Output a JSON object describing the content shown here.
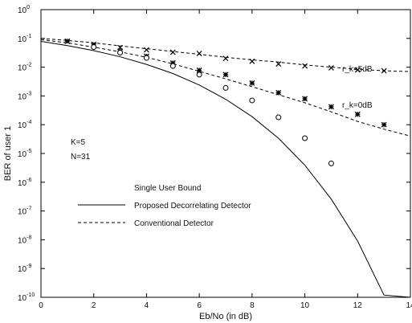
{
  "chart_data": {
    "type": "line",
    "title": "",
    "xlabel": "Eb/No (in dB)",
    "ylabel": "BER of user 1",
    "xlim": [
      0,
      14
    ],
    "ylim": [
      1e-10,
      1
    ],
    "yscale": "log",
    "grid": false,
    "x_ticks": [
      0,
      2,
      4,
      6,
      8,
      10,
      12,
      14
    ],
    "y_ticks": [
      {
        "value": 1,
        "base": "10",
        "exp": "0"
      },
      {
        "value": 0.1,
        "base": "10",
        "exp": "-1"
      },
      {
        "value": 0.01,
        "base": "10",
        "exp": "-2"
      },
      {
        "value": 0.001,
        "base": "10",
        "exp": "-3"
      },
      {
        "value": 0.0001,
        "base": "10",
        "exp": "-4"
      },
      {
        "value": 1e-05,
        "base": "10",
        "exp": "-5"
      },
      {
        "value": 1e-06,
        "base": "10",
        "exp": "-6"
      },
      {
        "value": 1e-07,
        "base": "10",
        "exp": "-7"
      },
      {
        "value": 1e-08,
        "base": "10",
        "exp": "-8"
      },
      {
        "value": 1e-09,
        "base": "10",
        "exp": "-9"
      },
      {
        "value": 1e-10,
        "base": "10",
        "exp": "-10"
      }
    ],
    "params": [
      "K=5",
      "N=31"
    ],
    "annotations": [
      {
        "text": "r_k=5dB",
        "x": 13.0,
        "y": 0.02
      },
      {
        "text": "r_k=0dB",
        "x": 13.0,
        "y": 0.0012
      }
    ],
    "legend": {
      "position": "center",
      "entries": [
        {
          "label": "Single User Bound",
          "style": "none"
        },
        {
          "label": "Proposed Decorrelating Detector",
          "style": "solid"
        },
        {
          "label": "Conventional Detector",
          "style": "dashed"
        }
      ]
    },
    "series": [
      {
        "label": "Single User Bound",
        "style": "solid",
        "x": [
          0,
          1,
          2,
          3,
          4,
          5,
          6,
          7,
          8,
          9,
          10,
          11,
          12,
          13,
          14
        ],
        "y": [
          0.079,
          0.056,
          0.0375,
          0.023,
          0.0125,
          0.006,
          0.0024,
          0.00077,
          0.00019,
          3.4e-05,
          3.9e-06,
          2.6e-07,
          9e-09,
          1.2e-10,
          1e-10
        ]
      },
      {
        "label": "Conventional Detector (r_k=5dB)",
        "style": "dashed",
        "x": [
          0,
          1,
          2,
          3,
          4,
          5,
          6,
          7,
          8,
          9,
          10,
          11,
          12,
          13,
          14
        ],
        "y": [
          0.1,
          0.085,
          0.07,
          0.055,
          0.044,
          0.035,
          0.028,
          0.022,
          0.018,
          0.015,
          0.012,
          0.01,
          0.0085,
          0.0075,
          0.007
        ]
      },
      {
        "label": "Conventional Detector (r_k=0dB)",
        "style": "dashed",
        "x": [
          0,
          1,
          2,
          3,
          4,
          5,
          6,
          7,
          8,
          9,
          10,
          11,
          12,
          13,
          14
        ],
        "y": [
          0.09,
          0.07,
          0.05,
          0.034,
          0.022,
          0.013,
          0.0072,
          0.0039,
          0.0021,
          0.0011,
          0.00058,
          0.00028,
          0.00013,
          7e-05,
          4e-05
        ]
      }
    ],
    "markers": [
      {
        "symbol": "x",
        "series": "Conventional Detector (r_k=5dB)",
        "x": [
          1,
          2,
          3,
          4,
          5,
          6,
          7,
          8,
          9,
          10,
          11,
          12,
          13
        ],
        "y": [
          0.08,
          0.062,
          0.048,
          0.04,
          0.033,
          0.03,
          0.02,
          0.016,
          0.013,
          0.011,
          0.0095,
          0.008,
          0.0075
        ]
      },
      {
        "symbol": "star",
        "series": "Conventional Detector (r_k=0dB)",
        "x": [
          1,
          2,
          3,
          4,
          5,
          6,
          7,
          8,
          9,
          10,
          11,
          12,
          13
        ],
        "y": [
          0.08,
          0.055,
          0.036,
          0.024,
          0.014,
          0.0078,
          0.0055,
          0.0028,
          0.0013,
          0.0008,
          0.00042,
          0.00023,
          0.0001
        ]
      },
      {
        "symbol": "circle",
        "series": "Single User Bound",
        "x": [
          2,
          3,
          4,
          5,
          6,
          7,
          8,
          9,
          10,
          11
        ],
        "y": [
          0.05,
          0.032,
          0.021,
          0.011,
          0.0055,
          0.0019,
          0.0007,
          0.00018,
          3.4e-05,
          4.5e-06
        ]
      }
    ]
  }
}
